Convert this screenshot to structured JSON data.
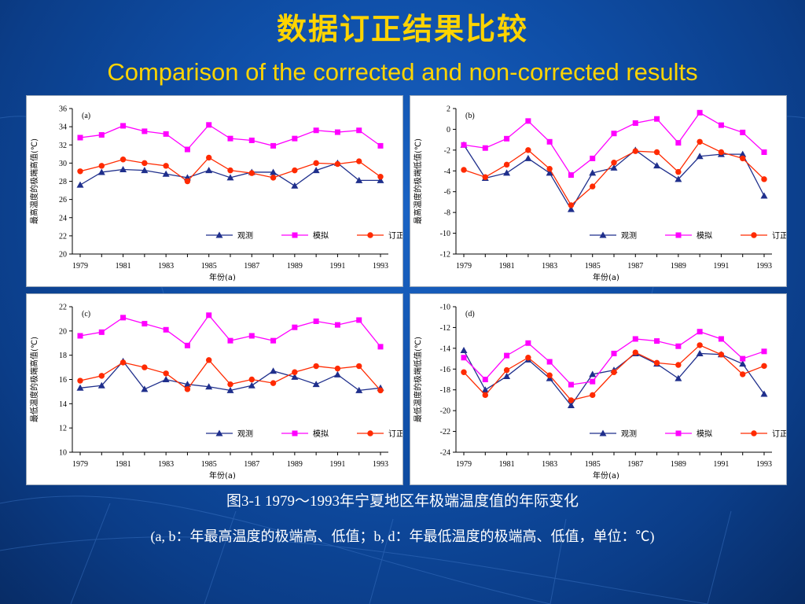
{
  "slide": {
    "title_zh": "数据订正结果比较",
    "title_en": "Comparison of the corrected and non-corrected results",
    "caption_line1": "图3-1 1979～1993年宁夏地区年极端温度值的年际变化",
    "caption_line2": "(a, b：年最高温度的极端高、低值；b, d：年最低温度的极端高、低值，单位：℃)"
  },
  "colors": {
    "observed": "#1f2f8c",
    "simulated": "#ff00ff",
    "corrected": "#ff2a00",
    "title": "#ffd400"
  },
  "chart_data": [
    {
      "type": "line",
      "panel_tag": "(a)",
      "xlabel": "年份(a)",
      "ylabel": "最高温度的极端高值(℃)",
      "x": [
        1979,
        1980,
        1981,
        1982,
        1983,
        1984,
        1985,
        1986,
        1987,
        1988,
        1989,
        1990,
        1991,
        1992,
        1993
      ],
      "x_ticks": [
        1979,
        1981,
        1983,
        1985,
        1987,
        1989,
        1991,
        1993
      ],
      "ylim": [
        20,
        36
      ],
      "y_ticks": [
        20,
        22,
        24,
        26,
        28,
        30,
        32,
        34,
        36
      ],
      "legend_position": "bottom-right",
      "series": [
        {
          "name": "观测",
          "marker": "triangle",
          "values": [
            27.6,
            29.0,
            29.3,
            29.2,
            28.8,
            28.4,
            29.2,
            28.4,
            29.0,
            29.0,
            27.5,
            29.2,
            30.0,
            28.1,
            28.1
          ]
        },
        {
          "name": "模拟",
          "marker": "square",
          "values": [
            32.8,
            33.1,
            34.1,
            33.5,
            33.2,
            31.5,
            34.2,
            32.7,
            32.5,
            31.9,
            32.7,
            33.6,
            33.4,
            33.6,
            31.9
          ]
        },
        {
          "name": "订正",
          "marker": "circle",
          "values": [
            29.1,
            29.7,
            30.4,
            30.0,
            29.7,
            28.0,
            30.6,
            29.2,
            28.9,
            28.4,
            29.2,
            30.0,
            29.9,
            30.2,
            28.5
          ]
        }
      ]
    },
    {
      "type": "line",
      "panel_tag": "(b)",
      "xlabel": "年份(a)",
      "ylabel": "最高温度的极端低值(℃)",
      "x": [
        1979,
        1980,
        1981,
        1982,
        1983,
        1984,
        1985,
        1986,
        1987,
        1988,
        1989,
        1990,
        1991,
        1992,
        1993
      ],
      "x_ticks": [
        1979,
        1981,
        1983,
        1985,
        1987,
        1989,
        1991,
        1993
      ],
      "ylim": [
        -12,
        2
      ],
      "y_ticks": [
        -12,
        -10,
        -8,
        -6,
        -4,
        -2,
        0,
        2
      ],
      "legend_position": "bottom-right",
      "series": [
        {
          "name": "观测",
          "marker": "triangle",
          "values": [
            -1.5,
            -4.7,
            -4.2,
            -2.8,
            -4.2,
            -7.7,
            -4.2,
            -3.7,
            -2.0,
            -3.5,
            -4.8,
            -2.6,
            -2.4,
            -2.4,
            -6.4
          ]
        },
        {
          "name": "模拟",
          "marker": "square",
          "values": [
            -1.5,
            -1.8,
            -0.9,
            0.8,
            -1.2,
            -4.4,
            -2.8,
            -0.4,
            0.6,
            1.0,
            -1.3,
            1.6,
            0.4,
            -0.3,
            -2.2
          ]
        },
        {
          "name": "订正",
          "marker": "circle",
          "values": [
            -3.9,
            -4.6,
            -3.4,
            -2.0,
            -3.8,
            -7.3,
            -5.5,
            -3.2,
            -2.1,
            -2.2,
            -4.1,
            -1.2,
            -2.2,
            -2.8,
            -4.8
          ]
        }
      ]
    },
    {
      "type": "line",
      "panel_tag": "(c)",
      "xlabel": "年份(a)",
      "ylabel": "最低温度的极端高值(℃)",
      "x": [
        1979,
        1980,
        1981,
        1982,
        1983,
        1984,
        1985,
        1986,
        1987,
        1988,
        1989,
        1990,
        1991,
        1992,
        1993
      ],
      "x_ticks": [
        1979,
        1981,
        1983,
        1985,
        1987,
        1989,
        1991,
        1993
      ],
      "ylim": [
        10,
        22
      ],
      "y_ticks": [
        10,
        12,
        14,
        16,
        18,
        20,
        22
      ],
      "legend_position": "bottom-right",
      "series": [
        {
          "name": "观测",
          "marker": "triangle",
          "values": [
            15.3,
            15.5,
            17.5,
            15.2,
            16.0,
            15.6,
            15.4,
            15.1,
            15.5,
            16.7,
            16.2,
            15.6,
            16.4,
            15.1,
            15.3
          ]
        },
        {
          "name": "模拟",
          "marker": "square",
          "values": [
            19.6,
            19.9,
            21.1,
            20.6,
            20.1,
            18.8,
            21.3,
            19.2,
            19.6,
            19.2,
            20.3,
            20.8,
            20.5,
            20.9,
            18.7
          ]
        },
        {
          "name": "订正",
          "marker": "circle",
          "values": [
            15.9,
            16.3,
            17.4,
            17.0,
            16.5,
            15.2,
            17.6,
            15.6,
            16.0,
            15.7,
            16.6,
            17.1,
            16.9,
            17.1,
            15.1
          ]
        }
      ]
    },
    {
      "type": "line",
      "panel_tag": "(d)",
      "xlabel": "年份(a)",
      "ylabel": "最低温度的极端低值(℃)",
      "x": [
        1979,
        1980,
        1981,
        1982,
        1983,
        1984,
        1985,
        1986,
        1987,
        1988,
        1989,
        1990,
        1991,
        1992,
        1993
      ],
      "x_ticks": [
        1979,
        1981,
        1983,
        1985,
        1987,
        1989,
        1991,
        1993
      ],
      "ylim": [
        -24,
        -10
      ],
      "y_ticks": [
        -24,
        -22,
        -20,
        -18,
        -16,
        -14,
        -12,
        -10
      ],
      "legend_position": "bottom-right",
      "series": [
        {
          "name": "观测",
          "marker": "triangle",
          "values": [
            -14.2,
            -18.0,
            -16.7,
            -15.1,
            -16.9,
            -19.5,
            -16.5,
            -16.1,
            -14.5,
            -15.5,
            -16.9,
            -14.5,
            -14.6,
            -15.5,
            -18.4
          ]
        },
        {
          "name": "模拟",
          "marker": "square",
          "values": [
            -14.9,
            -17.0,
            -14.7,
            -13.5,
            -15.3,
            -17.5,
            -17.2,
            -14.5,
            -13.1,
            -13.3,
            -13.8,
            -12.4,
            -13.1,
            -15.0,
            -14.3
          ]
        },
        {
          "name": "订正",
          "marker": "circle",
          "values": [
            -16.3,
            -18.5,
            -16.1,
            -14.9,
            -16.6,
            -19.0,
            -18.5,
            -16.3,
            -14.4,
            -15.4,
            -15.6,
            -13.7,
            -14.6,
            -16.5,
            -15.7
          ]
        }
      ]
    }
  ]
}
